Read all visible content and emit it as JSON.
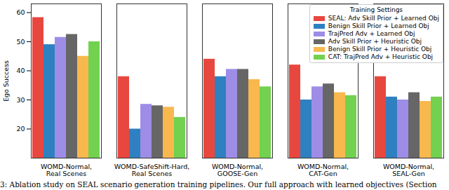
{
  "chart_data": {
    "type": "bar",
    "ylabel": "Ego Success",
    "categories": [
      "WOMD-Normal,\nReal Scenes",
      "WOMD-SafeShift-Hard,\nReal Scenes",
      "WOMD-Normal,\nGOOSE-Gen",
      "WOMD-Normal,\nCAT-Gen",
      "WOMD-Normal,\nSEAL-Gen"
    ],
    "series": [
      {
        "name": "SEAL: Adv Skill Prior + Learned Obj",
        "color": "#e8473f",
        "values": [
          58.3,
          38,
          44,
          42,
          38
        ]
      },
      {
        "name": "Benign Skill Prior + Learned Obj",
        "color": "#2f80c0",
        "values": [
          49,
          20,
          38,
          30,
          31
        ]
      },
      {
        "name": "TrajPred Adv + Learned Obj",
        "color": "#9e8de6",
        "values": [
          51.5,
          28.5,
          40.5,
          34.5,
          30
        ]
      },
      {
        "name": "Adv Skill Prior + Heuristic Obj",
        "color": "#666666",
        "values": [
          52.5,
          28,
          40.5,
          35.5,
          32.5
        ]
      },
      {
        "name": "Benign Skill Prior + Heuristic Obj",
        "color": "#f8b84e",
        "values": [
          45,
          27.5,
          37,
          32.5,
          29.5
        ]
      },
      {
        "name": "CAT: TrajPred Adv + Heuristic Obj",
        "color": "#72d14f",
        "values": [
          50,
          24,
          34.5,
          31.5,
          31
        ]
      }
    ],
    "ylim": [
      10,
      63
    ],
    "yticks": [
      20,
      30,
      40,
      50,
      60
    ],
    "grid": false,
    "legend": "upper right",
    "legend_title": "Training Settings",
    "caption": "3: Ablation study on SEAL scenario generation training pipelines. Our full approach with learned objectives (Section"
  }
}
